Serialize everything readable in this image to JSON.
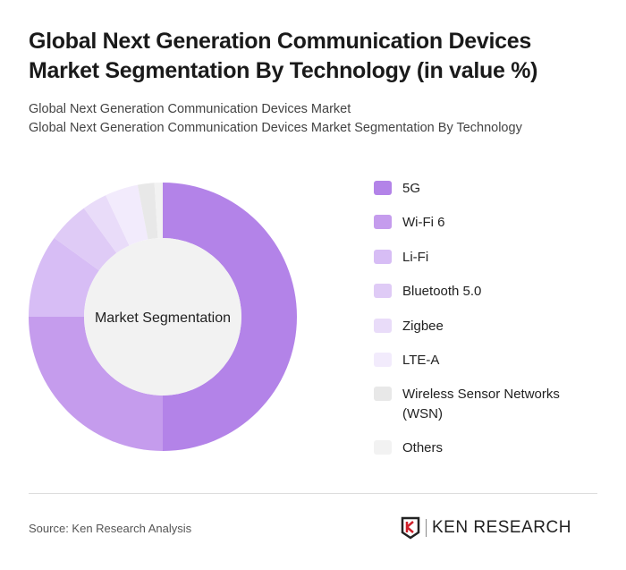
{
  "title": "Global Next Generation Communication Devices Market Segmentation By Technology (in value %)",
  "subtitle_1": "Global Next Generation Communication Devices Market",
  "subtitle_2": "Global Next Generation Communication Devices Market Segmentation By Technology",
  "source": "Source: Ken Research Analysis",
  "logo_text": "KEN RESEARCH",
  "chart_data": {
    "type": "pie",
    "variant": "donut",
    "center_label": "Market Segmentation",
    "legend_position": "right",
    "categories": [
      "5G",
      "Wi-Fi 6",
      "Li-Fi",
      "Bluetooth 5.0",
      "Zigbee",
      "LTE-A",
      "Wireless Sensor Networks (WSN)",
      "Others"
    ],
    "values": [
      50,
      25,
      10,
      5,
      3,
      4,
      2,
      1
    ],
    "colors": [
      "#b383e8",
      "#c59ced",
      "#d7bdf5",
      "#dfcbf6",
      "#e9dcf9",
      "#f2ebfc",
      "#e8e8e8",
      "#f2f2f2"
    ]
  }
}
